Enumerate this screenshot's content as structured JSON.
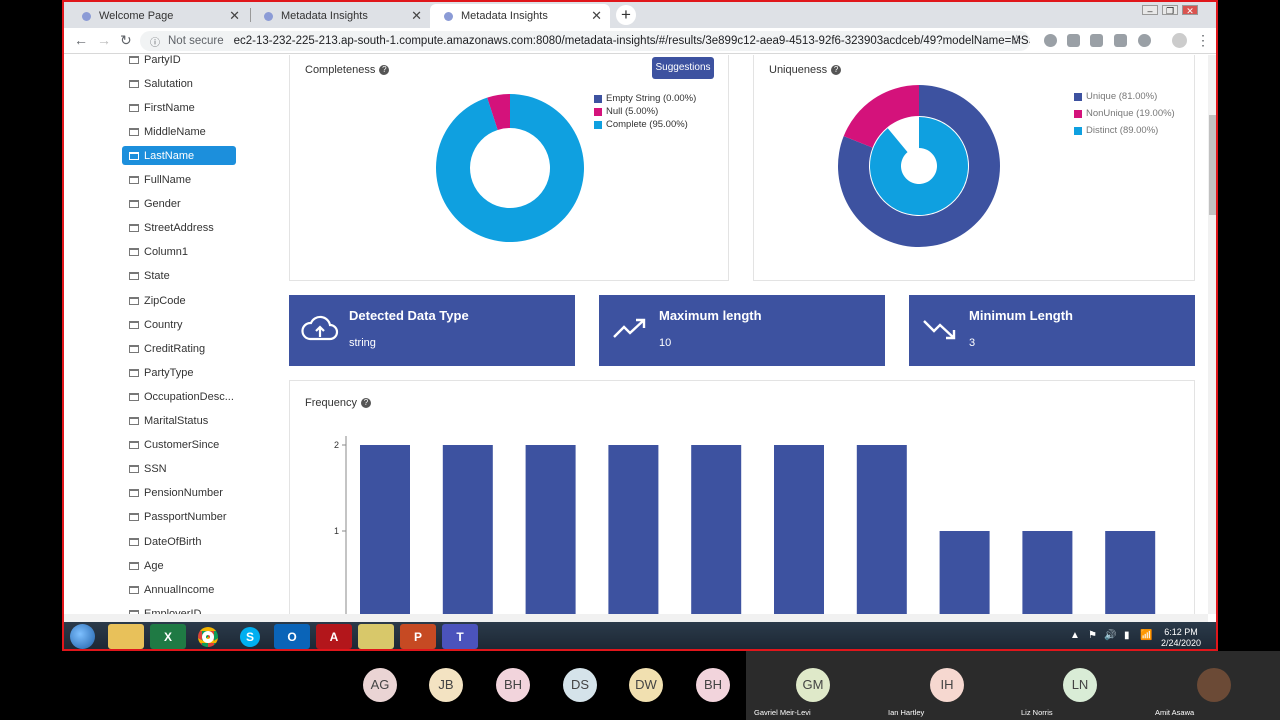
{
  "browser": {
    "tabs": [
      {
        "title": "Welcome Page"
      },
      {
        "title": "Metadata Insights"
      },
      {
        "title": "Metadata Insights"
      }
    ],
    "not_secure": "Not secure",
    "url": "ec2-13-232-225-213.ap-south-1.compute.amazonaws.com:8080/metadata-insights/#/results/3e899c12-aea9-4513-92f6-323903acdceb/49?modelName=MSSQL&t..."
  },
  "sidebar": {
    "selected": "LastName",
    "items": [
      "PartyID",
      "Salutation",
      "FirstName",
      "MiddleName",
      "LastName",
      "FullName",
      "Gender",
      "StreetAddress",
      "Column1",
      "State",
      "ZipCode",
      "Country",
      "CreditRating",
      "PartyType",
      "OccupationDesc...",
      "MaritalStatus",
      "CustomerSince",
      "SSN",
      "PensionNumber",
      "PassportNumber",
      "DateOfBirth",
      "Age",
      "AnnualIncome",
      "EmployerID"
    ]
  },
  "completeness": {
    "title": "Completeness",
    "suggestions_label": "Suggestions",
    "legend": [
      {
        "label": "Empty String (0.00%)",
        "color": "#3d52a0",
        "value": 0.0
      },
      {
        "label": "Null (5.00%)",
        "color": "#d4127b",
        "value": 5.0
      },
      {
        "label": "Complete (95.00%)",
        "color": "#0fa0e0",
        "value": 95.0
      }
    ]
  },
  "uniqueness": {
    "title": "Uniqueness",
    "legend": [
      {
        "label": "Unique (81.00%)",
        "color": "#3d52a0",
        "value": 81.0
      },
      {
        "label": "NonUnique (19.00%)",
        "color": "#d4127b",
        "value": 19.0
      },
      {
        "label": "Distinct (89.00%)",
        "color": "#0fa0e0",
        "value": 89.0
      }
    ]
  },
  "stats": [
    {
      "label": "Detected Data Type",
      "value": "string",
      "icon": "cloud-upload-icon"
    },
    {
      "label": "Maximum length",
      "value": "10",
      "icon": "trending-up-icon"
    },
    {
      "label": "Minimum Length",
      "value": "3",
      "icon": "trending-down-icon"
    }
  ],
  "frequency": {
    "title": "Frequency"
  },
  "chart_data": {
    "type": "bar",
    "title": "Frequency",
    "values": [
      2,
      2,
      2,
      2,
      2,
      2,
      2,
      1,
      1,
      1
    ],
    "yticks": [
      "1",
      "2"
    ],
    "ylim": [
      0,
      2
    ],
    "color": "#3d52a0"
  },
  "taskbar": {
    "apps": [
      "file-explorer-icon",
      "excel-icon",
      "chrome-icon",
      "skype-icon",
      "outlook-icon",
      "acrobat-icon",
      "sticky-notes-icon",
      "powerpoint-icon",
      "teams-icon"
    ],
    "time": "6:12 PM",
    "date": "2/24/2020"
  },
  "participants": {
    "avatars": [
      {
        "initials": "AG",
        "color": "#ead4d4"
      },
      {
        "initials": "JB",
        "color": "#f3e3c2"
      },
      {
        "initials": "BH",
        "color": "#f2d4dc"
      },
      {
        "initials": "DS",
        "color": "#d5e3ea"
      },
      {
        "initials": "DW",
        "color": "#f1e0b0"
      },
      {
        "initials": "BH",
        "color": "#f2d4dc"
      }
    ],
    "tiles": [
      {
        "initials": "GM",
        "name": "Gavriel Meir-Levi",
        "color": "#dfe9c9"
      },
      {
        "initials": "IH",
        "name": "Ian Hartley",
        "color": "#f6d8d0"
      },
      {
        "initials": "LN",
        "name": "Liz Norris",
        "color": "#d9ecd6"
      },
      {
        "initials": "",
        "name": "Amit Asawa",
        "color": "#6b4a36"
      }
    ]
  }
}
